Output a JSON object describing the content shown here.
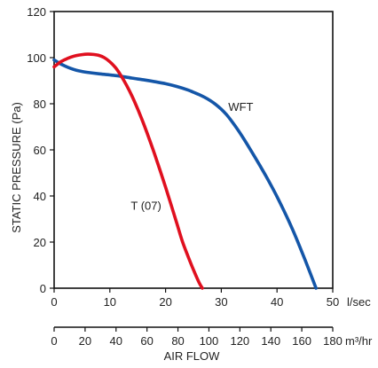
{
  "chart_data": {
    "type": "line",
    "title": "",
    "ylabel": "STATIC PRESSURE (Pa)",
    "xlabel": "AIR FLOW",
    "x_unit": "l/sec",
    "secondary_x_unit": "m³/hr",
    "xlim": [
      0,
      50
    ],
    "ylim": [
      0,
      120
    ],
    "secondary_xlim": [
      0,
      180
    ],
    "x_ticks": [
      0,
      10,
      20,
      30,
      40,
      50
    ],
    "y_ticks": [
      0,
      20,
      40,
      60,
      80,
      100,
      120
    ],
    "secondary_x_ticks": [
      0,
      20,
      40,
      60,
      80,
      100,
      120,
      140,
      160,
      180
    ],
    "grid": false,
    "series": [
      {
        "name": "T (07)",
        "color": "#e0101f",
        "x": [
          0,
          1,
          2,
          3,
          4,
          5,
          6,
          7,
          8,
          9,
          10,
          11,
          12,
          13,
          14,
          15,
          16,
          17,
          18,
          19,
          20,
          21,
          22,
          23,
          24,
          25,
          26,
          26.6
        ],
        "y": [
          96,
          97.9,
          99.2,
          100.2,
          100.9,
          101.3,
          101.5,
          101.4,
          101,
          100,
          98.2,
          95.7,
          92.2,
          88,
          83.2,
          77.7,
          71.7,
          65.2,
          58.4,
          51.2,
          43.8,
          36.1,
          28.3,
          20.4,
          14,
          8,
          2.5,
          0
        ]
      },
      {
        "name": "WFT",
        "color": "#1456a8",
        "x": [
          0,
          1,
          2,
          3,
          4,
          5,
          6,
          8,
          10,
          12,
          14,
          16,
          18,
          20,
          22,
          24,
          25,
          26,
          27,
          28,
          29,
          30,
          31,
          32,
          33,
          34,
          35,
          36,
          37,
          38,
          39,
          40,
          41,
          42,
          43,
          44,
          45,
          46,
          47
        ],
        "y": [
          99,
          97.5,
          96.3,
          95.3,
          94.5,
          94,
          93.6,
          93,
          92.5,
          91.9,
          91.1,
          90.4,
          89.6,
          88.7,
          87.5,
          86,
          85,
          84,
          82.8,
          81.4,
          79.7,
          77.6,
          75.1,
          72,
          68.6,
          64.9,
          61,
          57,
          52.9,
          48.7,
          44.3,
          39.7,
          34.8,
          29.7,
          24.3,
          18.5,
          12.5,
          6.3,
          0
        ]
      }
    ],
    "annotations": [
      {
        "text": "WFT",
        "x": 33.5,
        "y": 77
      },
      {
        "text": "T (07)",
        "x": 16.5,
        "y": 34
      }
    ]
  }
}
